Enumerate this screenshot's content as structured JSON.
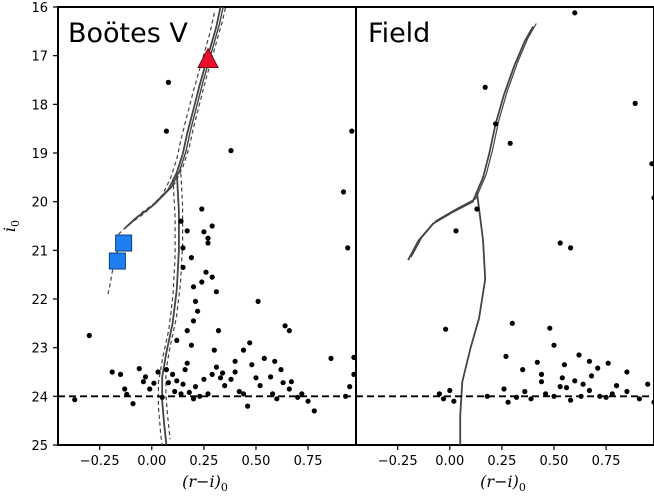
{
  "chart_data": [
    {
      "type": "scatter",
      "title": "Boötes V",
      "xlabel": "(r−i)0",
      "ylabel": "i0",
      "xlim": [
        -0.45,
        0.98
      ],
      "ylim": [
        25,
        16
      ],
      "x_ticks": [
        "−0.25",
        "0.00",
        "0.25",
        "0.50",
        "0.75"
      ],
      "x_tick_values": [
        -0.25,
        0.0,
        0.25,
        0.5,
        0.75
      ],
      "y_ticks": [
        "16",
        "17",
        "18",
        "19",
        "20",
        "21",
        "22",
        "23",
        "24",
        "25"
      ],
      "y_tick_values": [
        16,
        17,
        18,
        19,
        20,
        21,
        22,
        23,
        24,
        25
      ],
      "magnitude_limit": 24.0,
      "stars": [
        [
          -0.37,
          24.07
        ],
        [
          -0.3,
          22.75
        ],
        [
          -0.19,
          23.5
        ],
        [
          -0.15,
          23.55
        ],
        [
          -0.13,
          23.85
        ],
        [
          -0.12,
          23.96
        ],
        [
          -0.09,
          24.15
        ],
        [
          -0.06,
          23.43
        ],
        [
          -0.04,
          23.7
        ],
        [
          -0.03,
          23.6
        ],
        [
          -0.01,
          23.85
        ],
        [
          0.01,
          23.73
        ],
        [
          0.03,
          23.5
        ],
        [
          0.05,
          24.02
        ],
        [
          0.07,
          23.45
        ],
        [
          0.08,
          23.72
        ],
        [
          0.1,
          23.55
        ],
        [
          0.11,
          23.9
        ],
        [
          0.12,
          23.68
        ],
        [
          0.14,
          23.95
        ],
        [
          0.15,
          23.75
        ],
        [
          0.16,
          23.45
        ],
        [
          0.18,
          23.92
        ],
        [
          0.2,
          24.05
        ],
        [
          0.21,
          23.8
        ],
        [
          0.23,
          24.0
        ],
        [
          0.25,
          23.65
        ],
        [
          0.27,
          23.95
        ],
        [
          0.29,
          23.55
        ],
        [
          0.31,
          23.4
        ],
        [
          0.33,
          23.62
        ],
        [
          0.34,
          23.52
        ],
        [
          0.35,
          23.78
        ],
        [
          0.38,
          23.65
        ],
        [
          0.4,
          23.5
        ],
        [
          0.42,
          23.9
        ],
        [
          0.44,
          23.95
        ],
        [
          0.46,
          24.2
        ],
        [
          0.48,
          23.35
        ],
        [
          0.5,
          23.62
        ],
        [
          0.52,
          23.78
        ],
        [
          0.54,
          23.22
        ],
        [
          0.57,
          23.6
        ],
        [
          0.58,
          23.95
        ],
        [
          0.6,
          24.05
        ],
        [
          0.62,
          23.45
        ],
        [
          0.63,
          23.72
        ],
        [
          0.66,
          23.85
        ],
        [
          0.67,
          23.7
        ],
        [
          0.7,
          24.02
        ],
        [
          0.72,
          23.95
        ],
        [
          0.75,
          24.1
        ],
        [
          0.78,
          24.3
        ],
        [
          0.86,
          23.22
        ],
        [
          0.93,
          24.0
        ],
        [
          0.95,
          23.8
        ],
        [
          0.97,
          23.55
        ],
        [
          0.97,
          23.2
        ],
        [
          0.08,
          17.55
        ],
        [
          0.07,
          18.55
        ],
        [
          0.38,
          18.95
        ],
        [
          0.92,
          19.8
        ],
        [
          0.96,
          18.55
        ],
        [
          0.24,
          20.15
        ],
        [
          0.29,
          20.5
        ],
        [
          0.14,
          20.4
        ],
        [
          0.17,
          20.6
        ],
        [
          0.25,
          20.62
        ],
        [
          0.27,
          20.75
        ],
        [
          0.27,
          20.85
        ],
        [
          0.15,
          20.95
        ],
        [
          0.94,
          20.95
        ],
        [
          0.19,
          21.15
        ],
        [
          0.15,
          21.35
        ],
        [
          0.26,
          21.45
        ],
        [
          0.29,
          21.55
        ],
        [
          0.2,
          21.75
        ],
        [
          0.24,
          21.65
        ],
        [
          0.31,
          21.85
        ],
        [
          0.21,
          22.05
        ],
        [
          0.22,
          22.25
        ],
        [
          0.51,
          22.05
        ],
        [
          0.2,
          22.45
        ],
        [
          0.17,
          22.65
        ],
        [
          0.32,
          22.65
        ],
        [
          0.12,
          22.85
        ],
        [
          0.19,
          22.95
        ],
        [
          0.47,
          22.9
        ],
        [
          0.64,
          22.55
        ],
        [
          0.66,
          22.65
        ],
        [
          0.3,
          23.05
        ],
        [
          0.44,
          23.05
        ],
        [
          0.4,
          23.28
        ],
        [
          0.59,
          23.28
        ],
        [
          0.17,
          23.32
        ]
      ],
      "highlighted_squares": [
        [
          -0.135,
          20.85
        ],
        [
          -0.165,
          21.22
        ]
      ],
      "highlighted_triangle": [
        0.27,
        17.08
      ],
      "isochrone_color": "#444444",
      "square_color": "#1f7ff0",
      "triangle_color": "#e8112d"
    },
    {
      "type": "scatter",
      "title": "Field",
      "xlabel": "(r−i)0",
      "xlim": [
        -0.45,
        0.98
      ],
      "ylim": [
        25,
        16
      ],
      "x_ticks": [
        "−0.25",
        "0.00",
        "0.25",
        "0.50",
        "0.75"
      ],
      "x_tick_values": [
        -0.25,
        0.0,
        0.25,
        0.5,
        0.75
      ],
      "magnitude_limit": 24.0,
      "stars": [
        [
          0.6,
          16.12
        ],
        [
          0.17,
          17.65
        ],
        [
          0.22,
          18.4
        ],
        [
          0.29,
          18.8
        ],
        [
          0.89,
          17.98
        ],
        [
          0.97,
          19.22
        ],
        [
          0.98,
          19.92
        ],
        [
          0.13,
          20.15
        ],
        [
          0.03,
          20.6
        ],
        [
          0.53,
          20.85
        ],
        [
          0.58,
          20.95
        ],
        [
          -0.02,
          22.62
        ],
        [
          0.3,
          22.5
        ],
        [
          0.48,
          22.6
        ],
        [
          0.5,
          22.95
        ],
        [
          0.27,
          23.18
        ],
        [
          0.35,
          23.45
        ],
        [
          0.42,
          23.3
        ],
        [
          0.44,
          23.55
        ],
        [
          0.55,
          23.35
        ],
        [
          0.62,
          23.15
        ],
        [
          0.67,
          23.28
        ],
        [
          0.71,
          23.42
        ],
        [
          0.76,
          23.32
        ],
        [
          0.85,
          23.5
        ],
        [
          0.95,
          23.75
        ],
        [
          0.98,
          24.12
        ],
        [
          0.54,
          23.62
        ],
        [
          0.56,
          23.82
        ],
        [
          0.6,
          23.68
        ],
        [
          0.64,
          23.75
        ],
        [
          0.67,
          23.88
        ],
        [
          0.72,
          24.0
        ],
        [
          0.78,
          23.95
        ],
        [
          0.85,
          23.9
        ],
        [
          0.91,
          24.05
        ],
        [
          -0.05,
          23.95
        ],
        [
          -0.03,
          24.05
        ],
        [
          0.0,
          23.88
        ],
        [
          0.02,
          24.1
        ],
        [
          0.18,
          24.0
        ],
        [
          0.26,
          23.85
        ],
        [
          0.28,
          24.12
        ],
        [
          0.32,
          24.02
        ],
        [
          0.36,
          23.9
        ],
        [
          0.39,
          24.05
        ],
        [
          0.44,
          23.7
        ],
        [
          0.46,
          23.95
        ],
        [
          0.5,
          24.0
        ],
        [
          0.53,
          23.8
        ],
        [
          0.58,
          24.08
        ],
        [
          0.68,
          23.58
        ],
        [
          0.75,
          24.02
        ],
        [
          0.8,
          23.78
        ],
        [
          0.63,
          24.0
        ]
      ],
      "isochrone_color": "#444444"
    }
  ]
}
